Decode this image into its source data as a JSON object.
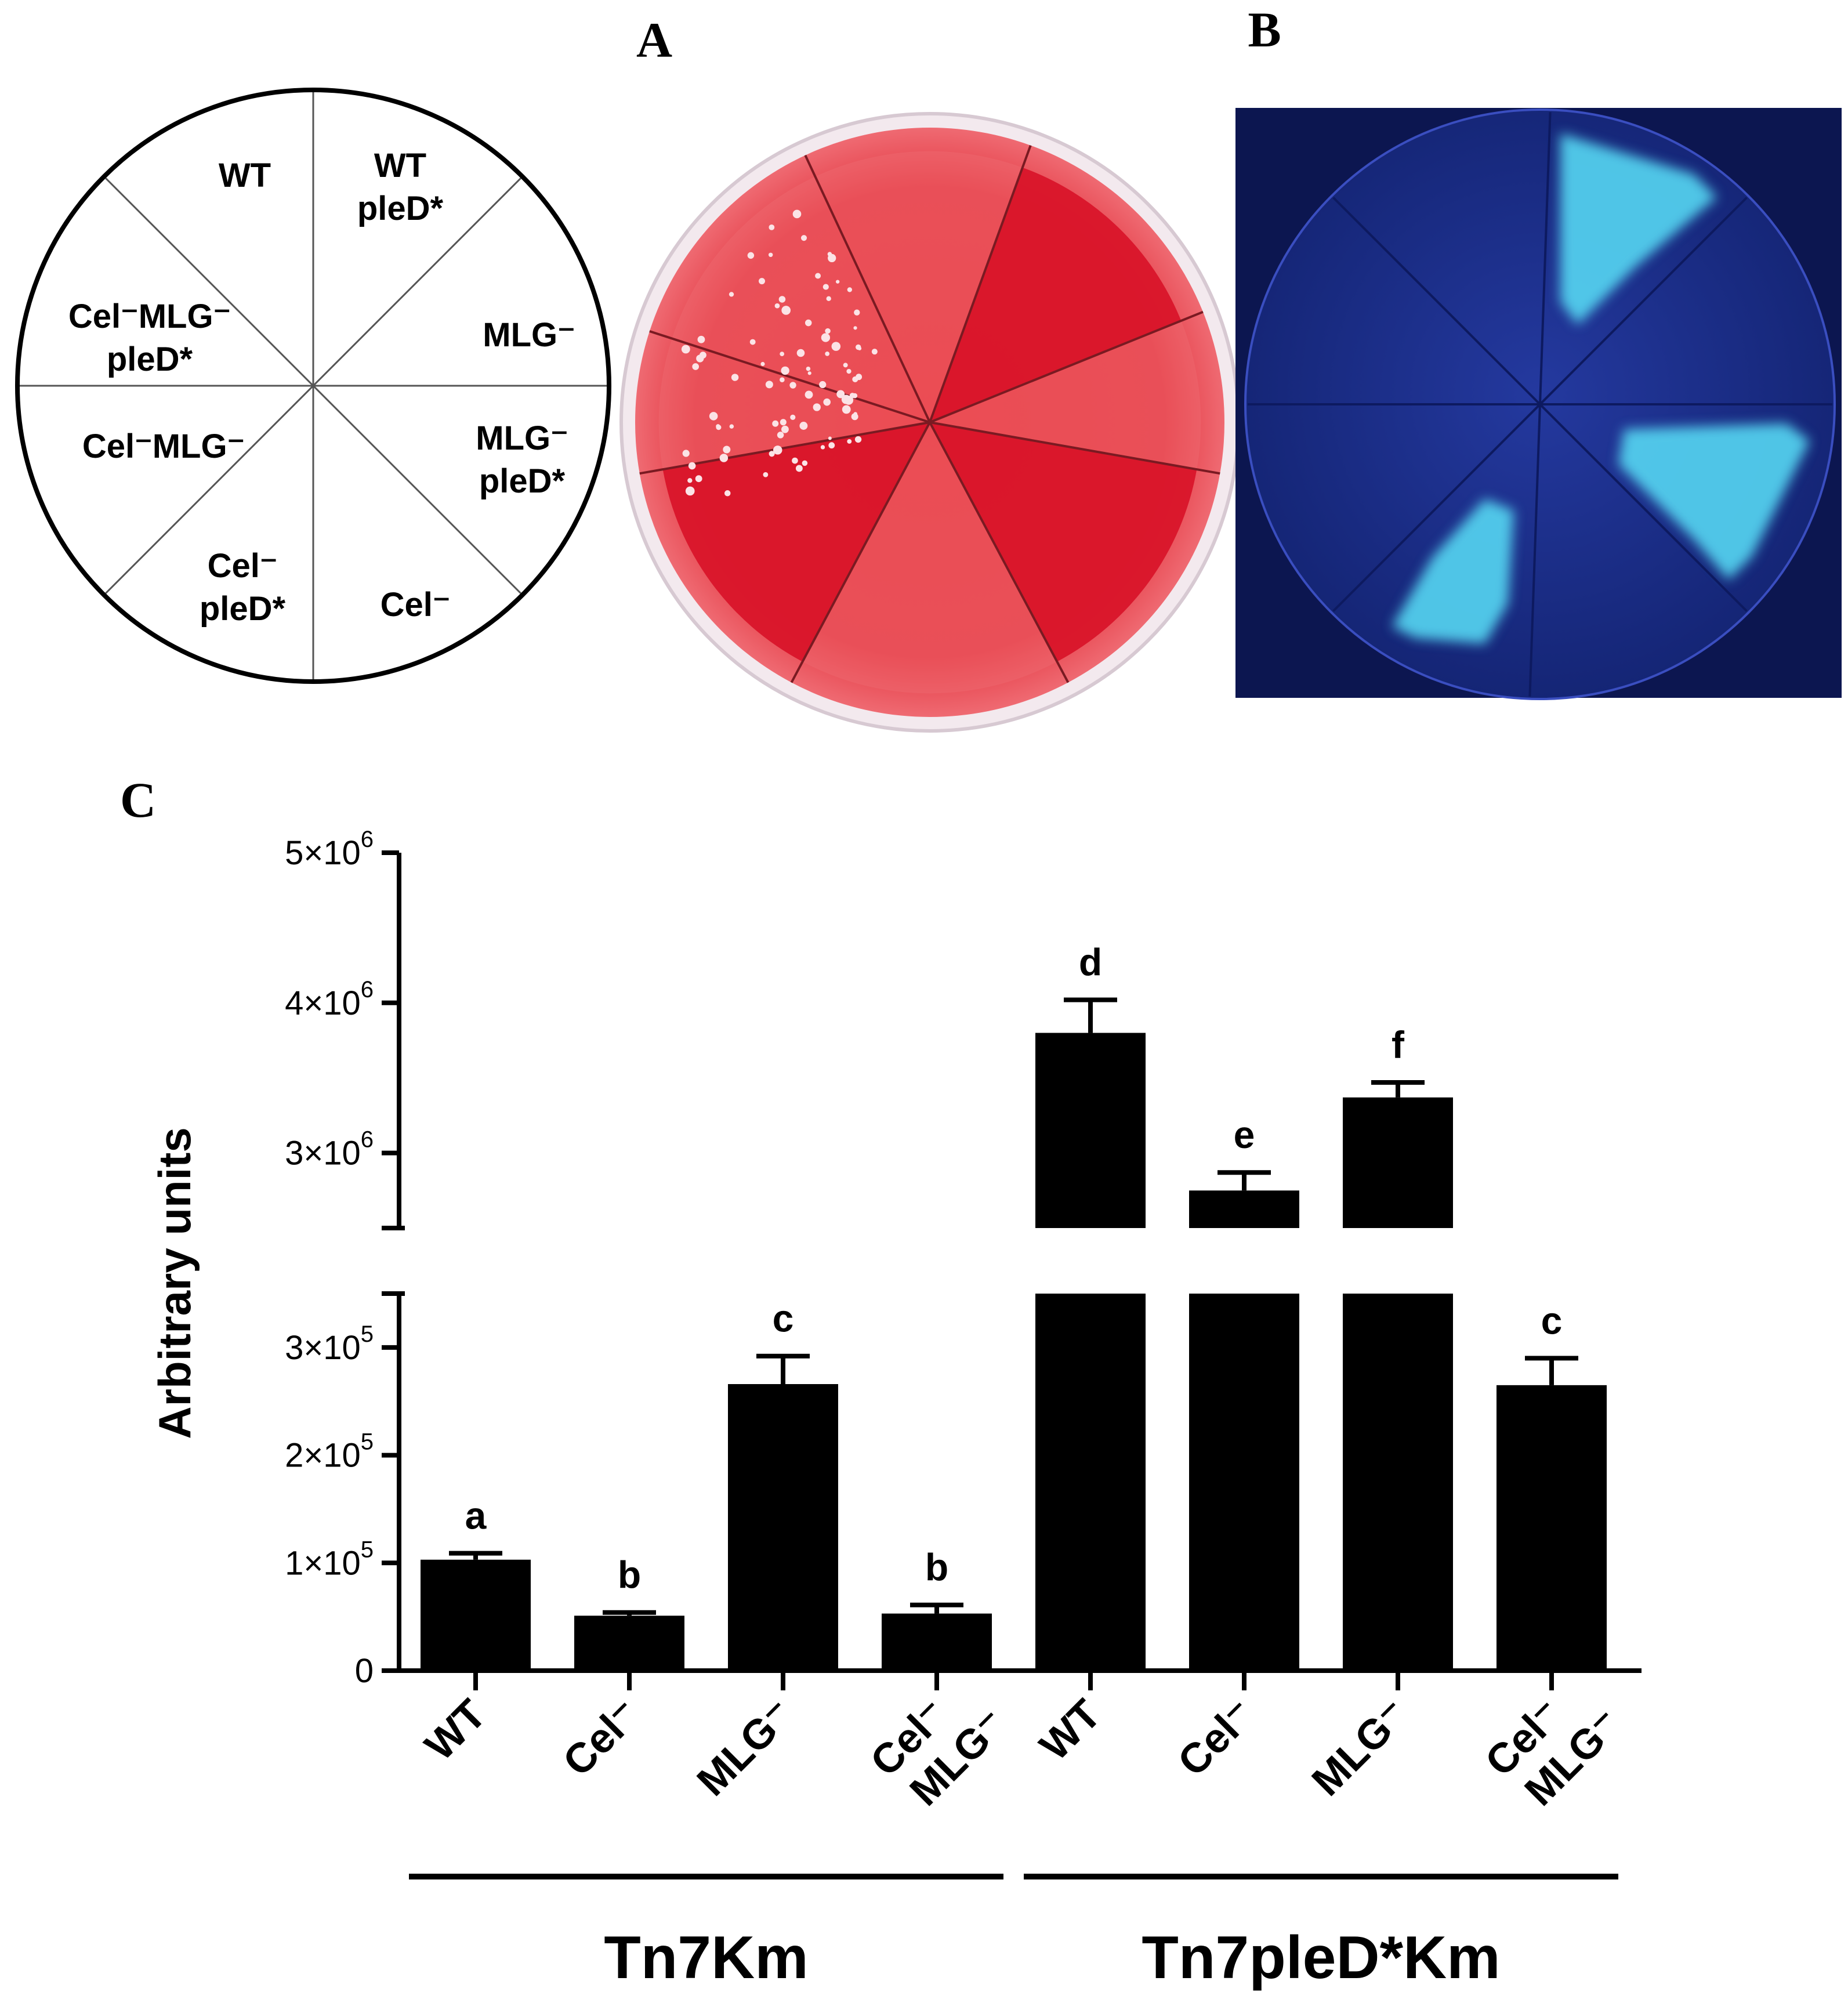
{
  "panels": {
    "a": {
      "label": "A"
    },
    "b": {
      "label": "B"
    },
    "c": {
      "label": "C"
    }
  },
  "plate_key": {
    "sectors": [
      {
        "lines": [
          "WT"
        ]
      },
      {
        "lines": [
          "WT",
          "pleD*"
        ]
      },
      {
        "lines": [
          "MLG⁻"
        ]
      },
      {
        "lines": [
          "MLG⁻",
          "pleD*"
        ]
      },
      {
        "lines": [
          "Cel⁻"
        ]
      },
      {
        "lines": [
          "Cel⁻",
          "pleD*"
        ]
      },
      {
        "lines": [
          "Cel⁻MLG⁻"
        ]
      },
      {
        "lines": [
          "Cel⁻MLG⁻",
          "pleD*"
        ]
      }
    ]
  },
  "colors": {
    "bar": "#000000",
    "plate_a_agar": "#e8343c",
    "plate_a_strong": "#d9152a",
    "plate_b_background": "#1d2f9a",
    "plate_b_fluorescence": "#55d6f2"
  },
  "chart_data": {
    "type": "bar",
    "ylabel": "Arbitrary units",
    "y_axis_broken": true,
    "lower_segment": {
      "ylim": [
        0,
        350000
      ],
      "ticks": [
        {
          "value": 0,
          "base": "0",
          "exp": ""
        },
        {
          "value": 100000,
          "base": "1×10",
          "exp": "5"
        },
        {
          "value": 200000,
          "base": "2×10",
          "exp": "5"
        },
        {
          "value": 300000,
          "base": "3×10",
          "exp": "5"
        }
      ]
    },
    "upper_segment": {
      "ylim": [
        2500000,
        5000000
      ],
      "ticks": [
        {
          "value": 3000000,
          "base": "3×10",
          "exp": "6"
        },
        {
          "value": 4000000,
          "base": "4×10",
          "exp": "6"
        },
        {
          "value": 5000000,
          "base": "5×10",
          "exp": "6"
        }
      ]
    },
    "categories": [
      {
        "lines": [
          "WT"
        ]
      },
      {
        "lines": [
          "Cel⁻"
        ]
      },
      {
        "lines": [
          "MLG⁻"
        ]
      },
      {
        "lines": [
          "Cel⁻",
          "MLG⁻"
        ]
      },
      {
        "lines": [
          "WT"
        ]
      },
      {
        "lines": [
          "Cel⁻"
        ]
      },
      {
        "lines": [
          "MLG⁻"
        ]
      },
      {
        "lines": [
          "Cel⁻",
          "MLG⁻"
        ]
      }
    ],
    "values": [
      103000,
      51000,
      266000,
      53000,
      3800000,
      2750000,
      3370000,
      265000
    ],
    "errors": [
      6000,
      3000,
      26000,
      8000,
      220000,
      120000,
      100000,
      25000
    ],
    "significance_letters": [
      "a",
      "b",
      "c",
      "b",
      "d",
      "e",
      "f",
      "c"
    ],
    "groups": [
      {
        "label": "Tn7Km",
        "range": [
          0,
          3
        ]
      },
      {
        "label": "Tn7pleD*Km",
        "range": [
          4,
          7
        ]
      }
    ]
  }
}
